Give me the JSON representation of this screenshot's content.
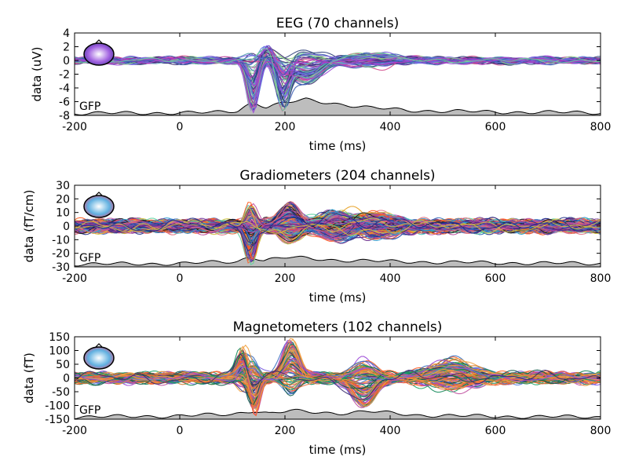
{
  "chart_data": [
    {
      "type": "line",
      "title": "EEG (70 channels)",
      "xlabel": "time (ms)",
      "ylabel": "data (uV)",
      "xlim": [
        -200,
        800
      ],
      "ylim": [
        -8,
        4
      ],
      "xticks": [
        -200,
        0,
        200,
        400,
        600,
        800
      ],
      "yticks": [
        4,
        2,
        0,
        -2,
        -4,
        -6,
        -8
      ],
      "gfp_label": "GFP",
      "n_channels": 70,
      "palette": [
        "#2e3f7a",
        "#3b5bb0",
        "#5a7fe0",
        "#7b5ce0",
        "#9b47d6",
        "#b03cc0",
        "#c2399a",
        "#d14a8a",
        "#4f9fb0",
        "#6fc9a0",
        "#8fd08a",
        "#3a2a6e"
      ],
      "channel_components": [
        {
          "t": 140,
          "width": 14,
          "amp_range": [
            -7.5,
            1.0
          ]
        },
        {
          "t": 195,
          "width": 16,
          "amp_range": [
            -7.0,
            0.5
          ]
        },
        {
          "t": 165,
          "width": 22,
          "amp_range": [
            -0.5,
            2.5
          ]
        },
        {
          "t": 240,
          "width": 40,
          "amp_range": [
            -3.5,
            1.5
          ]
        },
        {
          "t": 360,
          "width": 60,
          "amp_range": [
            -1.0,
            1.0
          ]
        }
      ],
      "noise_amp": 0.35,
      "gfp": {
        "base": -7.8,
        "points": [
          [
            -200,
            -7.7
          ],
          [
            60,
            -7.6
          ],
          [
            110,
            -7.3
          ],
          [
            140,
            -6.0
          ],
          [
            165,
            -6.8
          ],
          [
            200,
            -6.2
          ],
          [
            240,
            -5.7
          ],
          [
            300,
            -6.3
          ],
          [
            360,
            -6.9
          ],
          [
            450,
            -7.3
          ],
          [
            600,
            -7.5
          ],
          [
            800,
            -7.6
          ]
        ]
      }
    },
    {
      "type": "line",
      "title": "Gradiometers (204 channels)",
      "xlabel": "time (ms)",
      "ylabel": "data (fT/cm)",
      "xlim": [
        -200,
        800
      ],
      "ylim": [
        -30,
        30
      ],
      "xticks": [
        -200,
        0,
        200,
        400,
        600,
        800
      ],
      "yticks": [
        30,
        20,
        10,
        0,
        -10,
        -20,
        -30
      ],
      "gfp_label": "GFP",
      "n_channels": 204,
      "palette": [
        "#1f2f8a",
        "#3a6fc0",
        "#2a9ad0",
        "#4fc4c0",
        "#5fd3a0",
        "#7a3fa0",
        "#a040b0",
        "#c050a0",
        "#e07080",
        "#f06a3a",
        "#ff5a1f",
        "#e8a020",
        "#d0c040",
        "#1a1a1a",
        "#6a2a8a"
      ],
      "channel_components": [
        {
          "t": 135,
          "width": 12,
          "amp_range": [
            -26,
            16
          ]
        },
        {
          "t": 210,
          "width": 25,
          "amp_range": [
            -12,
            16
          ]
        },
        {
          "t": 300,
          "width": 40,
          "amp_range": [
            -10,
            10
          ]
        },
        {
          "t": 380,
          "width": 50,
          "amp_range": [
            -8,
            8
          ]
        }
      ],
      "noise_amp": 3.2,
      "gfp": {
        "base": -30,
        "points": [
          [
            -200,
            -28
          ],
          [
            0,
            -27.5
          ],
          [
            110,
            -26
          ],
          [
            135,
            -22
          ],
          [
            160,
            -25
          ],
          [
            210,
            -23
          ],
          [
            300,
            -25
          ],
          [
            400,
            -26
          ],
          [
            600,
            -27
          ],
          [
            800,
            -27.5
          ]
        ]
      }
    },
    {
      "type": "line",
      "title": "Magnetometers (102 channels)",
      "xlabel": "time (ms)",
      "ylabel": "data (fT)",
      "xlim": [
        -200,
        800
      ],
      "ylim": [
        -150,
        150
      ],
      "xticks": [
        -200,
        0,
        200,
        400,
        600,
        800
      ],
      "yticks": [
        150,
        100,
        50,
        0,
        -50,
        -100,
        -150
      ],
      "gfp_label": "GFP",
      "n_channels": 102,
      "palette": [
        "#0e5a4a",
        "#138a5a",
        "#1fa86a",
        "#3a6fc0",
        "#5a7fe0",
        "#7b5ce0",
        "#9b47d6",
        "#c050a0",
        "#f06a3a",
        "#ff5a1f",
        "#f0a040",
        "#d07a30",
        "#3a2a6e"
      ],
      "channel_components": [
        {
          "t": 140,
          "width": 13,
          "amp_range": [
            -145,
            60
          ]
        },
        {
          "t": 120,
          "width": 14,
          "amp_range": [
            -40,
            110
          ]
        },
        {
          "t": 212,
          "width": 20,
          "amp_range": [
            -60,
            135
          ]
        },
        {
          "t": 350,
          "width": 30,
          "amp_range": [
            -110,
            70
          ]
        },
        {
          "t": 520,
          "width": 60,
          "amp_range": [
            -40,
            60
          ]
        }
      ],
      "noise_amp": 14,
      "gfp": {
        "base": -150,
        "points": [
          [
            -200,
            -142
          ],
          [
            0,
            -138
          ],
          [
            100,
            -132
          ],
          [
            140,
            -118
          ],
          [
            170,
            -130
          ],
          [
            210,
            -120
          ],
          [
            300,
            -128
          ],
          [
            360,
            -122
          ],
          [
            450,
            -135
          ],
          [
            600,
            -140
          ],
          [
            800,
            -142
          ]
        ]
      }
    }
  ]
}
